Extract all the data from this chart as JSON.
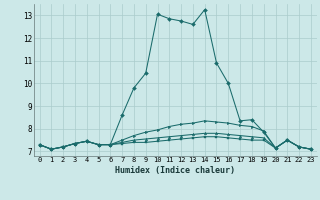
{
  "xlabel": "Humidex (Indice chaleur)",
  "background_color": "#cce8e8",
  "grid_color": "#aacccc",
  "line_color": "#1a6b6b",
  "xlim": [
    -0.5,
    23.5
  ],
  "ylim": [
    6.8,
    13.5
  ],
  "xticks": [
    0,
    1,
    2,
    3,
    4,
    5,
    6,
    7,
    8,
    9,
    10,
    11,
    12,
    13,
    14,
    15,
    16,
    17,
    18,
    19,
    20,
    21,
    22,
    23
  ],
  "yticks": [
    7,
    8,
    9,
    10,
    11,
    12,
    13
  ],
  "series": [
    [
      7.3,
      7.1,
      7.2,
      7.35,
      7.45,
      7.3,
      7.3,
      8.6,
      9.8,
      10.45,
      13.05,
      12.85,
      12.75,
      12.6,
      13.25,
      10.9,
      10.0,
      8.35,
      8.4,
      7.85,
      7.15,
      7.5,
      7.2,
      7.1
    ],
    [
      7.3,
      7.1,
      7.2,
      7.35,
      7.45,
      7.3,
      7.3,
      7.5,
      7.7,
      7.85,
      7.95,
      8.1,
      8.2,
      8.25,
      8.35,
      8.3,
      8.25,
      8.15,
      8.1,
      7.9,
      7.15,
      7.5,
      7.2,
      7.1
    ],
    [
      7.3,
      7.1,
      7.2,
      7.35,
      7.45,
      7.3,
      7.3,
      7.4,
      7.5,
      7.55,
      7.6,
      7.65,
      7.7,
      7.75,
      7.8,
      7.8,
      7.75,
      7.7,
      7.65,
      7.6,
      7.15,
      7.5,
      7.2,
      7.1
    ],
    [
      7.3,
      7.1,
      7.2,
      7.35,
      7.45,
      7.3,
      7.3,
      7.35,
      7.4,
      7.4,
      7.45,
      7.5,
      7.55,
      7.6,
      7.65,
      7.65,
      7.6,
      7.55,
      7.5,
      7.5,
      7.15,
      7.5,
      7.2,
      7.1
    ]
  ],
  "markers": [
    "D",
    ">",
    "^",
    "s"
  ],
  "markersizes": [
    2.0,
    1.8,
    1.8,
    1.8
  ]
}
